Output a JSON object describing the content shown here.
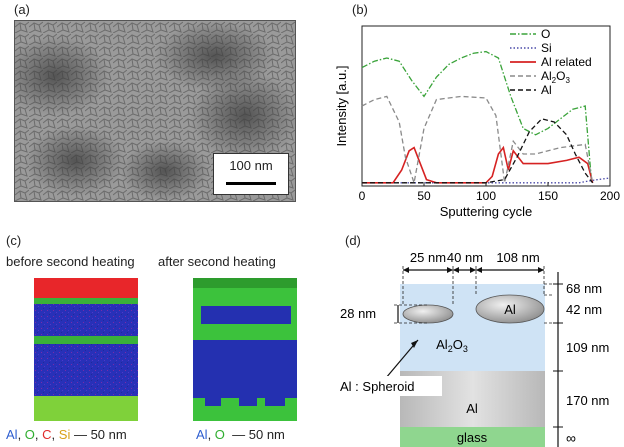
{
  "panels": {
    "a": {
      "label": "(a)",
      "scale_bar": "100 nm"
    },
    "b": {
      "label": "(b)"
    },
    "c": {
      "label": "(c)",
      "caption_before": "before second heating",
      "caption_after": "after second heating",
      "legend_before": [
        {
          "text": "Al",
          "color": "#2f5fd0"
        },
        {
          "text": ", ",
          "color": "#222222"
        },
        {
          "text": "O",
          "color": "#2fae2f"
        },
        {
          "text": ", ",
          "color": "#222222"
        },
        {
          "text": "C",
          "color": "#e02a2a"
        },
        {
          "text": ", ",
          "color": "#222222"
        },
        {
          "text": "Si",
          "color": "#d8a21a"
        },
        {
          "text": " — 50 nm",
          "color": "#222222"
        }
      ],
      "legend_after": [
        {
          "text": "Al",
          "color": "#2f5fd0"
        },
        {
          "text": ", ",
          "color": "#222222"
        },
        {
          "text": "O",
          "color": "#2fae2f"
        },
        {
          "text": "  — 50 nm",
          "color": "#222222"
        }
      ]
    },
    "d": {
      "label": "(d)",
      "dims_top": [
        "25 nm",
        "40 nm",
        "108 nm"
      ],
      "dims_right": [
        "68 nm",
        "42 nm",
        "109 nm",
        "170 nm",
        "∞"
      ],
      "dim_left": "28 nm",
      "layer_al2o3": "Al",
      "layer_al2o3_sub": "2",
      "layer_al2o3_rest": "O",
      "layer_al2o3_sub2": "3",
      "spheroid_label": "Al",
      "pointer_label": "Al : Spheroid",
      "layer_al": "Al",
      "layer_glass": "glass"
    }
  },
  "chart_data": {
    "type": "line",
    "title": "",
    "xlabel": "Sputtering cycle",
    "ylabel": "Intensity [a.u.]",
    "xlim": [
      0,
      200
    ],
    "xticks": [
      0,
      50,
      100,
      150,
      200
    ],
    "y_unit": "arbitrary",
    "legend_position": "top-right",
    "series": [
      {
        "name": "O",
        "style": "dash-dot",
        "color": "#3aa33a",
        "x": [
          0,
          10,
          20,
          30,
          40,
          50,
          60,
          70,
          80,
          90,
          100,
          110,
          120,
          130,
          140,
          150,
          160,
          170,
          180,
          185
        ],
        "y": [
          0.74,
          0.78,
          0.8,
          0.78,
          0.66,
          0.56,
          0.68,
          0.76,
          0.8,
          0.83,
          0.84,
          0.8,
          0.56,
          0.36,
          0.32,
          0.36,
          0.42,
          0.48,
          0.5,
          0.04
        ]
      },
      {
        "name": "Si",
        "style": "dotted",
        "color": "#4a4aa8",
        "x": [
          0,
          50,
          100,
          150,
          175,
          182,
          190,
          200
        ],
        "y": [
          0.02,
          0.02,
          0.02,
          0.02,
          0.02,
          0.03,
          0.04,
          0.05
        ]
      },
      {
        "name": "Al related",
        "style": "solid",
        "color": "#d62222",
        "x": [
          0,
          25,
          32,
          38,
          42,
          46,
          52,
          60,
          100,
          105,
          110,
          114,
          118,
          122,
          126,
          130,
          150,
          165,
          175,
          182,
          186
        ],
        "y": [
          0.02,
          0.02,
          0.1,
          0.22,
          0.24,
          0.16,
          0.04,
          0.02,
          0.02,
          0.06,
          0.2,
          0.24,
          0.1,
          0.22,
          0.18,
          0.14,
          0.14,
          0.16,
          0.18,
          0.14,
          0.02
        ]
      },
      {
        "name": "Al2O3",
        "style": "dashed",
        "color": "#8a8a8a",
        "x": [
          0,
          10,
          20,
          30,
          35,
          42,
          50,
          60,
          80,
          100,
          108,
          115,
          122,
          130,
          140,
          160,
          180,
          186
        ],
        "y": [
          0.5,
          0.54,
          0.56,
          0.4,
          0.18,
          0.02,
          0.36,
          0.54,
          0.56,
          0.55,
          0.44,
          0.02,
          0.28,
          0.2,
          0.2,
          0.24,
          0.26,
          0.02
        ]
      },
      {
        "name": "Al",
        "style": "dashed",
        "color": "#111111",
        "x": [
          0,
          100,
          115,
          125,
          135,
          145,
          155,
          165,
          172,
          180,
          186
        ],
        "y": [
          0.02,
          0.02,
          0.04,
          0.18,
          0.34,
          0.42,
          0.4,
          0.32,
          0.2,
          0.08,
          0.02
        ]
      }
    ]
  }
}
